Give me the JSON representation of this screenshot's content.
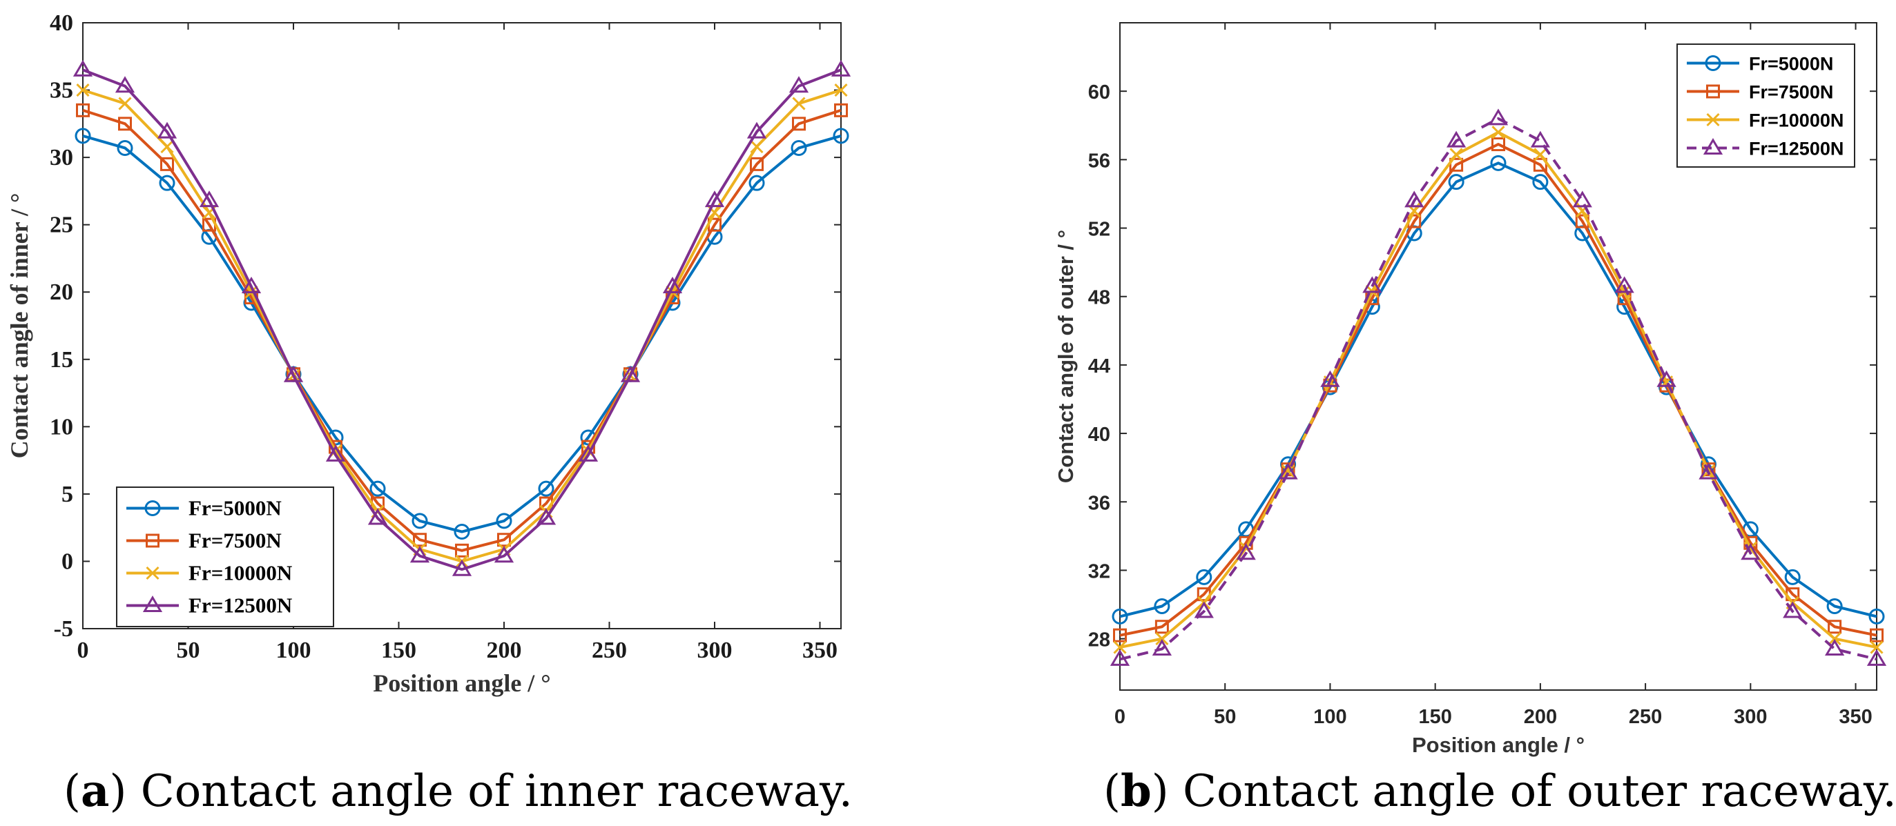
{
  "chart_data": [
    {
      "id": "a",
      "type": "line",
      "xlabel": "Position angle / °",
      "ylabel": "Contact angle of inner / °",
      "xlim": [
        0,
        360
      ],
      "ylim": [
        -5,
        40
      ],
      "xticks": [
        0,
        50,
        100,
        150,
        200,
        250,
        300,
        350
      ],
      "yticks": [
        -5,
        0,
        5,
        10,
        15,
        20,
        25,
        30,
        35,
        40
      ],
      "legend_position": "bottom-left",
      "x": [
        0,
        20,
        40,
        60,
        80,
        100,
        120,
        140,
        160,
        180,
        200,
        220,
        240,
        260,
        280,
        300,
        320,
        340,
        360
      ],
      "series": [
        {
          "name": "Fr=5000N",
          "color": "#0072BD",
          "marker": "circle",
          "dashed": false,
          "values": [
            31.6,
            30.7,
            28.1,
            24.1,
            19.2,
            13.9,
            9.2,
            5.4,
            3.0,
            2.2,
            3.0,
            5.4,
            9.2,
            13.9,
            19.2,
            24.1,
            28.1,
            30.7,
            31.6
          ]
        },
        {
          "name": "Fr=7500N",
          "color": "#D95319",
          "marker": "square",
          "dashed": false,
          "values": [
            33.5,
            32.5,
            29.5,
            25.0,
            19.6,
            13.9,
            8.5,
            4.3,
            1.6,
            0.8,
            1.6,
            4.3,
            8.5,
            13.9,
            19.6,
            25.0,
            29.5,
            32.5,
            33.5
          ]
        },
        {
          "name": "Fr=10000N",
          "color": "#EDB120",
          "marker": "x",
          "dashed": false,
          "values": [
            35.0,
            34.0,
            30.8,
            25.9,
            20.0,
            13.8,
            8.2,
            3.7,
            0.9,
            0.0,
            0.9,
            3.7,
            8.2,
            13.8,
            20.0,
            25.9,
            30.8,
            34.0,
            35.0
          ]
        },
        {
          "name": "Fr=12500N",
          "color": "#7E2F8E",
          "marker": "triangle",
          "dashed": false,
          "values": [
            36.5,
            35.3,
            31.9,
            26.8,
            20.4,
            13.8,
            7.9,
            3.2,
            0.4,
            -0.6,
            0.4,
            3.2,
            7.9,
            13.8,
            20.4,
            26.8,
            31.9,
            35.3,
            36.5
          ]
        }
      ]
    },
    {
      "id": "b",
      "type": "line",
      "xlabel": "Position angle / °",
      "ylabel": "Contact angle of outer / °",
      "xlim": [
        0,
        360
      ],
      "ylim": [
        25,
        64
      ],
      "xticks": [
        0,
        50,
        100,
        150,
        200,
        250,
        300,
        350
      ],
      "yticks": [
        28,
        32,
        36,
        40,
        44,
        48,
        52,
        56,
        60
      ],
      "legend_position": "top-right",
      "x": [
        0,
        20,
        40,
        60,
        80,
        100,
        120,
        140,
        160,
        180,
        200,
        220,
        240,
        260,
        280,
        300,
        320,
        340,
        360
      ],
      "series": [
        {
          "name": "Fr=5000N",
          "color": "#0072BD",
          "marker": "circle",
          "dashed": false,
          "values": [
            29.3,
            29.9,
            31.6,
            34.4,
            38.2,
            42.7,
            47.4,
            51.7,
            54.7,
            55.8,
            54.7,
            51.7,
            47.4,
            42.7,
            38.2,
            34.4,
            31.6,
            29.9,
            29.3
          ]
        },
        {
          "name": "Fr=7500N",
          "color": "#D95319",
          "marker": "square",
          "dashed": false,
          "values": [
            28.2,
            28.7,
            30.6,
            33.6,
            37.9,
            42.8,
            47.9,
            52.4,
            55.7,
            56.9,
            55.7,
            52.4,
            47.9,
            42.8,
            37.9,
            33.6,
            30.6,
            28.7,
            28.2
          ]
        },
        {
          "name": "Fr=10000N",
          "color": "#EDB120",
          "marker": "x",
          "dashed": false,
          "values": [
            27.5,
            28.0,
            30.1,
            33.3,
            37.8,
            43.0,
            48.3,
            53.0,
            56.3,
            57.6,
            56.3,
            53.0,
            48.3,
            43.0,
            37.8,
            33.3,
            30.1,
            28.0,
            27.5
          ]
        },
        {
          "name": "Fr=12500N",
          "color": "#7E2F8E",
          "marker": "triangle",
          "dashed": true,
          "values": [
            26.8,
            27.4,
            29.6,
            33.0,
            37.7,
            43.1,
            48.6,
            53.6,
            57.1,
            58.4,
            57.1,
            53.6,
            48.6,
            43.1,
            37.7,
            33.0,
            29.6,
            27.4,
            26.8
          ]
        }
      ]
    }
  ],
  "captions": {
    "a": {
      "letter": "a",
      "text": ") Contact angle of inner raceway."
    },
    "b": {
      "letter": "b",
      "text": ") Contact angle of outer raceway."
    }
  }
}
